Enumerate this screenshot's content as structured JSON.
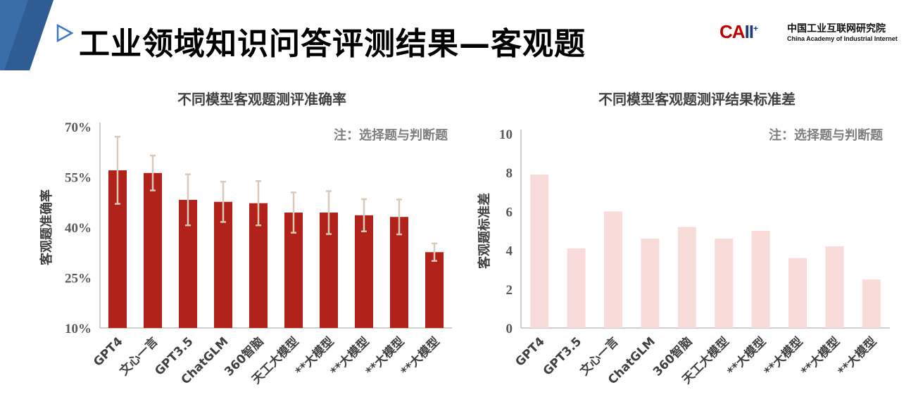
{
  "header": {
    "title": "工业领域知识问答评测结果—客观题",
    "logo_mark_red": "CA",
    "logo_mark_blue": "II",
    "logo_mark_plus": "+",
    "logo_cn": "中国工业互联网研究院",
    "logo_en": "China Academy of Industrial Internet",
    "icons": [
      "play-arrow-icon",
      "logo-icon"
    ]
  },
  "chart_data": [
    {
      "type": "bar",
      "title": "不同模型客观题测评准确率",
      "note": "注：选择题与判断题",
      "ylabel": "客观题准确率",
      "xlabel": "",
      "ylim": [
        10,
        70
      ],
      "yticks": [
        "70%",
        "55%",
        "40%",
        "25%",
        "10%"
      ],
      "ytick_values": [
        70,
        55,
        40,
        25,
        10
      ],
      "categories": [
        "GPT4",
        "文心一言",
        "GPT3.5",
        "ChatGLM",
        "360智脑",
        "天工大模型",
        "**大模型",
        "**大模型",
        "**大模型",
        "**大模型"
      ],
      "values": [
        57.0,
        56.2,
        48.2,
        47.6,
        47.2,
        44.4,
        44.4,
        43.6,
        43.1,
        32.6
      ],
      "error": [
        10.0,
        5.2,
        7.6,
        6.0,
        6.6,
        6.0,
        6.4,
        4.8,
        5.2,
        2.6
      ],
      "grid": false,
      "colors": {
        "bar": "#b0221a",
        "error": "#d9c9b8"
      }
    },
    {
      "type": "bar",
      "title": "不同模型客观题测评结果标准差",
      "note": "注：选择题与判断题",
      "ylabel": "客观题标准差",
      "xlabel": "",
      "ylim": [
        0,
        10
      ],
      "yticks": [
        "10",
        "8",
        "6",
        "4",
        "2",
        "0"
      ],
      "ytick_values": [
        10,
        8,
        6,
        4,
        2,
        0
      ],
      "categories": [
        "GPT4",
        "GPT3.5",
        "文心一言",
        "ChatGLM",
        "360智脑",
        "天工大模型",
        "**大模型",
        "**大模型",
        "**大模型",
        "**大模型"
      ],
      "values": [
        7.9,
        4.1,
        6.0,
        4.6,
        5.2,
        4.6,
        5.0,
        3.6,
        4.2,
        2.5
      ],
      "grid": false,
      "colors": {
        "bar": "#f9dcda"
      }
    }
  ]
}
